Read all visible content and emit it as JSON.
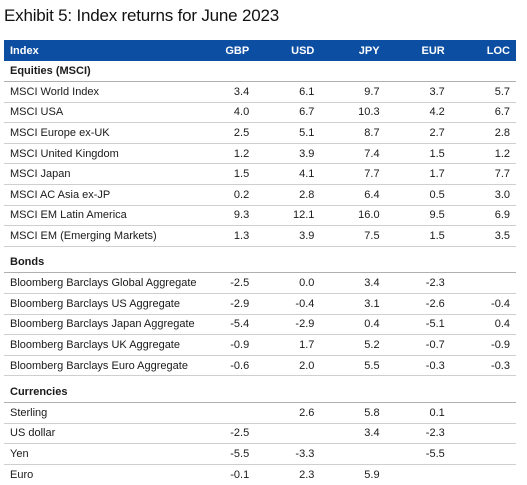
{
  "title": "Exhibit 5: Index returns for June 2023",
  "header": [
    "Index",
    "GBP",
    "USD",
    "JPY",
    "EUR",
    "LOC"
  ],
  "sections": [
    {
      "name": "Equities (MSCI)",
      "rows": [
        {
          "name": "MSCI World Index",
          "values": [
            "3.4",
            "6.1",
            "9.7",
            "3.7",
            "5.7"
          ]
        },
        {
          "name": "MSCI USA",
          "values": [
            "4.0",
            "6.7",
            "10.3",
            "4.2",
            "6.7"
          ]
        },
        {
          "name": "MSCI Europe ex-UK",
          "values": [
            "2.5",
            "5.1",
            "8.7",
            "2.7",
            "2.8"
          ]
        },
        {
          "name": "MSCI United Kingdom",
          "values": [
            "1.2",
            "3.9",
            "7.4",
            "1.5",
            "1.2"
          ]
        },
        {
          "name": "MSCI Japan",
          "values": [
            "1.5",
            "4.1",
            "7.7",
            "1.7",
            "7.7"
          ]
        },
        {
          "name": "MSCI AC Asia ex-JP",
          "values": [
            "0.2",
            "2.8",
            "6.4",
            "0.5",
            "3.0"
          ]
        },
        {
          "name": "MSCI EM Latin America",
          "values": [
            "9.3",
            "12.1",
            "16.0",
            "9.5",
            "6.9"
          ]
        },
        {
          "name": "MSCI EM (Emerging Markets)",
          "values": [
            "1.3",
            "3.9",
            "7.5",
            "1.5",
            "3.5"
          ]
        }
      ]
    },
    {
      "name": "Bonds",
      "rows": [
        {
          "name": "Bloomberg Barclays Global Aggregate",
          "values": [
            "-2.5",
            "0.0",
            "3.4",
            "-2.3",
            ""
          ]
        },
        {
          "name": "Bloomberg Barclays US Aggregate",
          "values": [
            "-2.9",
            "-0.4",
            "3.1",
            "-2.6",
            "-0.4"
          ]
        },
        {
          "name": "Bloomberg Barclays Japan Aggregate",
          "values": [
            "-5.4",
            "-2.9",
            "0.4",
            "-5.1",
            "0.4"
          ]
        },
        {
          "name": "Bloomberg Barclays UK Aggregate",
          "values": [
            "-0.9",
            "1.7",
            "5.2",
            "-0.7",
            "-0.9"
          ]
        },
        {
          "name": "Bloomberg Barclays Euro Aggregate",
          "values": [
            "-0.6",
            "2.0",
            "5.5",
            "-0.3",
            "-0.3"
          ]
        }
      ]
    },
    {
      "name": "Currencies",
      "rows": [
        {
          "name": "Sterling",
          "values": [
            "",
            "2.6",
            "5.8",
            "0.1",
            ""
          ]
        },
        {
          "name": "US dollar",
          "values": [
            "-2.5",
            "",
            "3.4",
            "-2.3",
            ""
          ]
        },
        {
          "name": "Yen",
          "values": [
            "-5.5",
            "-3.3",
            "",
            "-5.5",
            ""
          ]
        },
        {
          "name": "Euro",
          "values": [
            "-0.1",
            "2.3",
            "5.9",
            "",
            ""
          ]
        }
      ]
    }
  ]
}
